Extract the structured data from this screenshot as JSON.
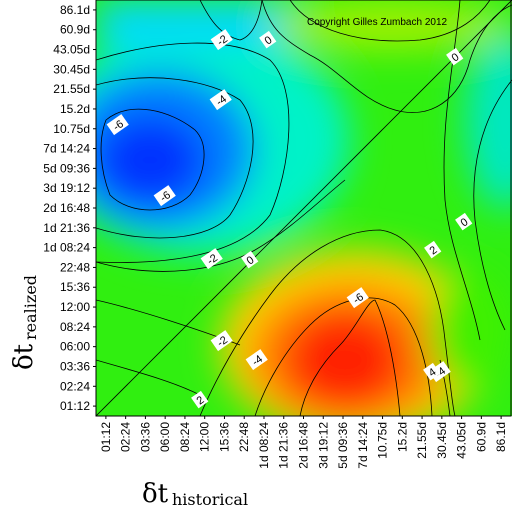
{
  "chart_data": {
    "type": "heatmap",
    "annotation": "Copyright Gilles Zumbach 2012",
    "xlabel": "δt",
    "xlabel_sub": "historical",
    "ylabel": "δt",
    "ylabel_sub": "realized",
    "x_ticks": [
      "01:12",
      "02:24",
      "03:36",
      "06:00",
      "08:24",
      "12:00",
      "15:36",
      "22:48",
      "1d 08:24",
      "1d 21:36",
      "2d 16:48",
      "3d 19:12",
      "5d 09:36",
      "7d 14:24",
      "10.75d",
      "15.2d",
      "21.55d",
      "30.45d",
      "43.05d",
      "60.9d",
      "86.1d"
    ],
    "y_ticks_top_to_bottom": [
      "86.1d",
      "60.9d",
      "43.05d",
      "30.45d",
      "21.55d",
      "15.2d",
      "10.75d",
      "7d 14:24",
      "5d 09:36",
      "3d 19:12",
      "2d 16:48",
      "1d 21:36",
      "1d 08:24",
      "22:48",
      "15:36",
      "12:00",
      "08:24",
      "06:00",
      "03:36",
      "02:24",
      "01:12"
    ],
    "contour_labels": [
      "-2",
      "0",
      "-4",
      "-6",
      "-6",
      "0",
      "-2",
      "0",
      "0",
      "-2",
      "-6",
      "2",
      "-4",
      "-4",
      "2",
      "4"
    ],
    "colors": {
      "deep_blue": "#0000ff",
      "cyan": "#00ffff",
      "green": "#00ff00",
      "yellow": "#ffff00",
      "red": "#ff0000"
    }
  }
}
